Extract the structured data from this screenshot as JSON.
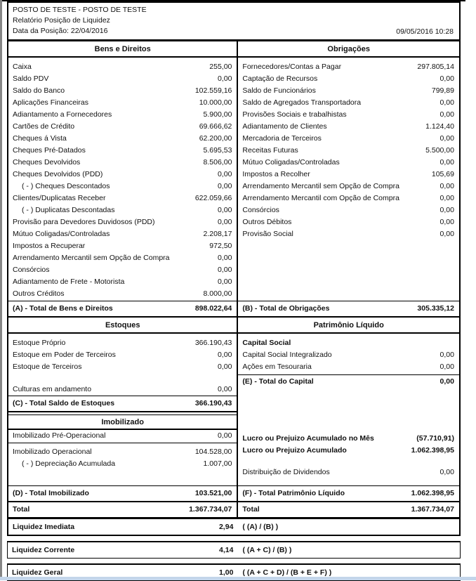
{
  "report": {
    "company": "POSTO DE TESTE - POSTO DE TESTE",
    "title": "Relatório Posição de Liquidez",
    "position_date": "Data da Posição: 22/04/2016",
    "generated_at": "09/05/2016 10:28"
  },
  "sections": {
    "bens_direitos": {
      "title": "Bens e Direitos",
      "items": [
        {
          "label": "Caixa",
          "value": "255,00"
        },
        {
          "label": "Saldo PDV",
          "value": "0,00"
        },
        {
          "label": "Saldo do Banco",
          "value": "102.559,16"
        },
        {
          "label": "Aplicações Financeiras",
          "value": "10.000,00"
        },
        {
          "label": "Adiantamento a Fornecedores",
          "value": "5.900,00"
        },
        {
          "label": "Cartões de Crédito",
          "value": "69.666,62"
        },
        {
          "label": "Cheques á Vista",
          "value": "62.200,00"
        },
        {
          "label": "Cheques Pré-Datados",
          "value": "5.695,53"
        },
        {
          "label": "Cheques Devolvidos",
          "value": "8.506,00"
        },
        {
          "label": "Cheques Devolvidos (PDD)",
          "value": "0,00"
        },
        {
          "label": "( - ) Cheques Descontados",
          "value": "0,00",
          "indent": true
        },
        {
          "label": "Clientes/Duplicatas Receber",
          "value": "622.059,66"
        },
        {
          "label": "( - ) Duplicatas Descontadas",
          "value": "0,00",
          "indent": true
        },
        {
          "label": "Provisão para Devedores Duvidosos (PDD)",
          "value": "0,00"
        },
        {
          "label": "Mútuo Coligadas/Controladas",
          "value": "2.208,17"
        },
        {
          "label": "Impostos a Recuperar",
          "value": "972,50"
        },
        {
          "label": "Arrendamento Mercantil sem Opção de Compra",
          "value": "0,00"
        },
        {
          "label": "Consórcios",
          "value": "0,00"
        },
        {
          "label": "Adiantamento de Frete - Motorista",
          "value": "0,00"
        },
        {
          "label": "Outros Créditos",
          "value": "8.000,00"
        }
      ],
      "total": {
        "label": "(A) - Total de Bens e Direitos",
        "value": "898.022,64"
      }
    },
    "obrigacoes": {
      "title": "Obrigações",
      "items": [
        {
          "label": "Fornecedores/Contas a Pagar",
          "value": "297.805,14"
        },
        {
          "label": "Captação de Recursos",
          "value": "0,00"
        },
        {
          "label": "Saldo de Funcionários",
          "value": "799,89"
        },
        {
          "label": "Saldo de Agregados Transportadora",
          "value": "0,00"
        },
        {
          "label": "Provisões Sociais e trabalhistas",
          "value": "0,00"
        },
        {
          "label": "Adiantamento de Clientes",
          "value": "1.124,40"
        },
        {
          "label": "Mercadoria de Terceiros",
          "value": "0,00"
        },
        {
          "label": "Receitas Futuras",
          "value": "5.500,00"
        },
        {
          "label": "Mútuo Coligadas/Controladas",
          "value": "0,00"
        },
        {
          "label": "Impostos a Recolher",
          "value": "105,69"
        },
        {
          "label": "Arrendamento Mercantil sem Opção de Compra",
          "value": "0,00"
        },
        {
          "label": "Arrendamento Mercantil com Opção de Compra",
          "value": "0,00"
        },
        {
          "label": "Consórcios",
          "value": "0,00"
        },
        {
          "label": "Outros Débitos",
          "value": "0,00"
        },
        {
          "label": "Provisão Social",
          "value": "0,00"
        }
      ],
      "total": {
        "label": "(B) - Total de Obrigações",
        "value": "305.335,12"
      }
    },
    "estoques": {
      "title": "Estoques",
      "items": [
        {
          "label": "Estoque Próprio",
          "value": "366.190,43"
        },
        {
          "label": "Estoque em Poder de Terceiros",
          "value": "0,00"
        },
        {
          "label": "Estoque de Terceiros",
          "value": "0,00"
        },
        {
          "label": "Culturas em andamento",
          "value": "0,00"
        }
      ],
      "total": {
        "label": "(C) - Total Saldo de Estoques",
        "value": "366.190,43"
      }
    },
    "patrimonio_liquido": {
      "title": "Patrimônio Líquido",
      "items": [
        {
          "label": "Capital Social",
          "value": "",
          "bold": true
        },
        {
          "label": "Capital Social Integralizado",
          "value": "0,00"
        },
        {
          "label": "Ações em Tesouraria",
          "value": "0,00"
        },
        {
          "label": "(E) - Total do Capital",
          "value": "0,00",
          "bold": true
        },
        {
          "label": "Lucro ou Prejuizo Acumulado no Mês",
          "value": "(57.710,91)",
          "bold": true
        },
        {
          "label": "Lucro ou Prejuizo Acumulado",
          "value": "1.062.398,95",
          "bold": true
        },
        {
          "label": "Distribuição de Dividendos",
          "value": "0,00"
        }
      ],
      "total": {
        "label": "(F) - Total Patrimônio Líquido",
        "value": "1.062.398,95"
      }
    },
    "imobilizado": {
      "title": "Imobilizado",
      "items": [
        {
          "label": "Imobilizado Pré-Operacional",
          "value": "0,00"
        },
        {
          "label": "Imobilizado Operacional",
          "value": "104.528,00"
        },
        {
          "label": "( - ) Depreciação Acumulada",
          "value": "1.007,00",
          "indent": true
        }
      ],
      "total": {
        "label": "(D) - Total Imobilizado",
        "value": "103.521,00"
      }
    }
  },
  "grand_totals": {
    "left": {
      "label": "Total",
      "value": "1.367.734,07"
    },
    "right": {
      "label": "Total",
      "value": "1.367.734,07"
    }
  },
  "liquidity": {
    "imediata": {
      "label": "Liquidez Imediata",
      "value": "2,94",
      "formula": "( (A) / (B) )"
    },
    "corrente": {
      "label": "Liquidez Corrente",
      "value": "4,14",
      "formula": "( (A + C) / (B) )"
    },
    "geral": {
      "label": "Liquidez Geral",
      "value": "1,00",
      "formula": "( (A + C + D) / (B + E + F) )"
    }
  }
}
